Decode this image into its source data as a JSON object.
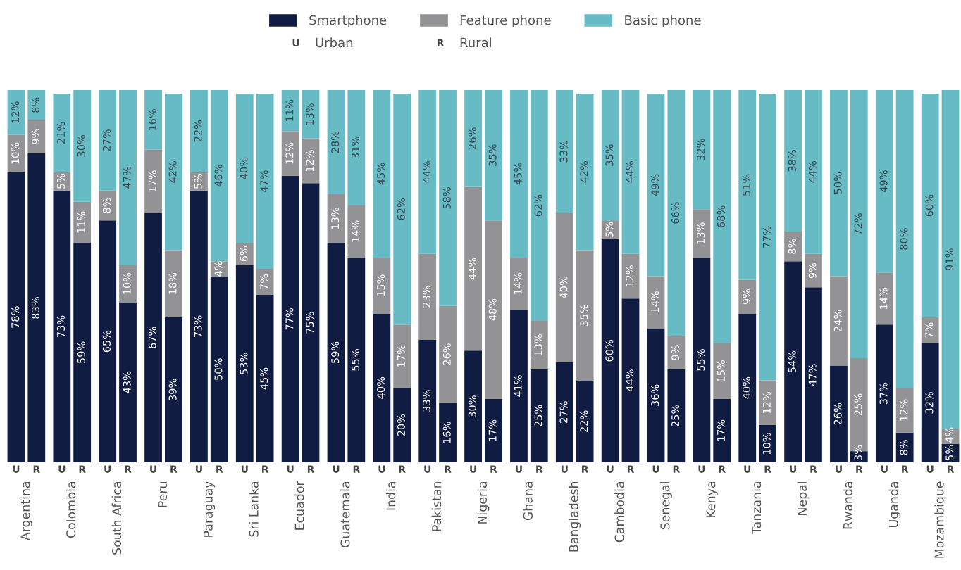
{
  "chart_data": {
    "type": "bar",
    "stacked": true,
    "legend": "top",
    "tick_labels": "x",
    "ylim": [
      0,
      100
    ],
    "categories": [
      "U",
      "R",
      "U",
      "R",
      "U",
      "R",
      "U",
      "R",
      "U",
      "R",
      "U",
      "R",
      "U",
      "R",
      "U",
      "R",
      "U",
      "R",
      "U",
      "R",
      "U",
      "R",
      "U",
      "R",
      "U",
      "R",
      "U",
      "R",
      "U",
      "R",
      "U",
      "R",
      "U",
      "R",
      "U",
      "R",
      "U",
      "R",
      "U",
      "R",
      "U",
      "R"
    ],
    "series": [
      {
        "name": "Smartphone",
        "color": "#111c42",
        "values": [
          78,
          83,
          73,
          59,
          65,
          43,
          67,
          39,
          73,
          50,
          53,
          45,
          77,
          75,
          59,
          55,
          40,
          20,
          33,
          16,
          30,
          17,
          41,
          25,
          27,
          22,
          60,
          44,
          36,
          25,
          55,
          17,
          40,
          10,
          54,
          47,
          26,
          3,
          37,
          8,
          32,
          5
        ],
        "value_labels": [
          "78%",
          "83%",
          "73%",
          "59%",
          "65%",
          "43%",
          "67%",
          "39%",
          "73%",
          "50%",
          "53%",
          "45%",
          "77%",
          "75%",
          "59%",
          "55%",
          "40%",
          "20%",
          "33%",
          "16%",
          "30%",
          "17%",
          "41%",
          "25%",
          "27%",
          "22%",
          "60%",
          "44%",
          "36%",
          "25%",
          "55%",
          "17%",
          "40%",
          "10%",
          "54%",
          "47%",
          "26%",
          "3%",
          "37%",
          "8%",
          "32%",
          "5%"
        ]
      },
      {
        "name": "Feature phone",
        "color": "#939396",
        "values": [
          10,
          9,
          5,
          11,
          8,
          10,
          17,
          18,
          5,
          4,
          6,
          7,
          12,
          12,
          13,
          14,
          15,
          17,
          23,
          26,
          44,
          48,
          14,
          13,
          40,
          35,
          5,
          12,
          14,
          9,
          13,
          15,
          9,
          12,
          8,
          9,
          24,
          25,
          14,
          12,
          7,
          4
        ],
        "value_labels": [
          "10%",
          "9%",
          "5%",
          "11%",
          "8%",
          "10%",
          "17%",
          "18%",
          "5%",
          "4%",
          "6%",
          "7%",
          "12%",
          "12%",
          "13%",
          "14%",
          "15%",
          "17%",
          "23%",
          "26%",
          "44%",
          "48%",
          "14%",
          "13%",
          "40%",
          "35%",
          "5%",
          "12%",
          "14%",
          "9%",
          "13%",
          "15%",
          "9%",
          "12%",
          "8%",
          "9%",
          "24%",
          "25%",
          "14%",
          "12%",
          "7%",
          "4%"
        ]
      },
      {
        "name": "Basic phone",
        "color": "#66bbc4",
        "values": [
          12,
          8,
          21,
          30,
          27,
          47,
          16,
          42,
          22,
          46,
          40,
          47,
          11,
          13,
          28,
          31,
          45,
          62,
          44,
          58,
          26,
          35,
          45,
          62,
          33,
          42,
          35,
          44,
          49,
          66,
          32,
          68,
          51,
          77,
          38,
          44,
          50,
          72,
          49,
          80,
          60,
          91
        ],
        "value_labels": [
          "12%",
          "8%",
          "21%",
          "30%",
          "27%",
          "47%",
          "16%",
          "42%",
          "22%",
          "46%",
          "40%",
          "47%",
          "11%",
          "13%",
          "28%",
          "31%",
          "45%",
          "62%",
          "44%",
          "58%",
          "26%",
          "35%",
          "45%",
          "62%",
          "33%",
          "42%",
          "35%",
          "44%",
          "49%",
          "66%",
          "32%",
          "68%",
          "51%",
          "77%",
          "38%",
          "44%",
          "50%",
          "72%",
          "49%",
          "80%",
          "60%",
          "91%"
        ]
      }
    ],
    "annotations": [
      "U",
      "Urban",
      "R",
      "Rural",
      "Argentina",
      "Colombia",
      "South Africa",
      "Peru",
      "Paraguay",
      "Sri Lanka",
      "Ecuador",
      "Guatemala",
      "India",
      "Pakistan",
      "Nigeria",
      "Ghana",
      "Bangladesh",
      "Cambodia",
      "Senegal",
      "Kenya",
      "Tanzania",
      "Nepal",
      "Rwanda",
      "Uganda",
      "Mozambique"
    ]
  }
}
